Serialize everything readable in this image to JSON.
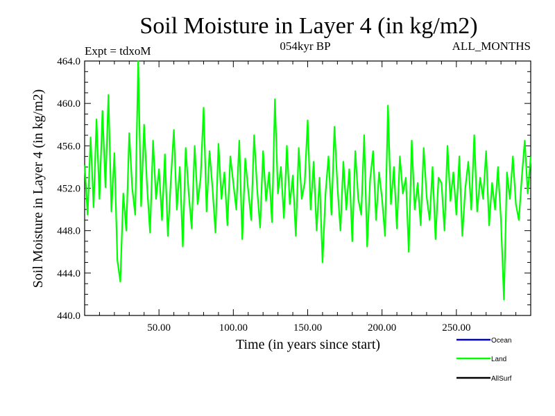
{
  "chart_data": {
    "type": "line",
    "title": "Soil Moisture in Layer 4 (in kg/m2)",
    "subtitle_left": "Expt = tdxoM",
    "subtitle_center": "054kyr BP",
    "subtitle_right": "ALL_MONTHS",
    "xlabel": "Time (in years since start)",
    "ylabel": "Soil Moisture in Layer 4 (in kg/m2)",
    "xlim": [
      0,
      300
    ],
    "ylim": [
      440,
      464
    ],
    "x_ticks": [
      50,
      100,
      150,
      200,
      250
    ],
    "x_tick_labels": [
      "50.00",
      "100.00",
      "150.00",
      "200.00",
      "250.00"
    ],
    "y_ticks": [
      440,
      444,
      448,
      452,
      456,
      460,
      464
    ],
    "y_tick_labels": [
      "440.0",
      "444.0",
      "448.0",
      "452.0",
      "456.0",
      "460.0",
      "464.0"
    ],
    "legend": [
      {
        "name": "Ocean",
        "color": "#0000cc"
      },
      {
        "name": "Land",
        "color": "#00ff00"
      },
      {
        "name": "AllSurf",
        "color": "#000000"
      }
    ],
    "legend_position": "bottom-right",
    "series": [
      {
        "name": "Land",
        "color": "#00ff00",
        "x": [
          0,
          2,
          4,
          6,
          8,
          10,
          12,
          14,
          16,
          18,
          20,
          22,
          24,
          26,
          28,
          30,
          32,
          34,
          36,
          38,
          40,
          42,
          44,
          46,
          48,
          50,
          52,
          54,
          56,
          58,
          60,
          62,
          64,
          66,
          68,
          70,
          72,
          74,
          76,
          78,
          80,
          82,
          84,
          86,
          88,
          90,
          92,
          94,
          96,
          98,
          100,
          102,
          104,
          106,
          108,
          110,
          112,
          114,
          116,
          118,
          120,
          122,
          124,
          126,
          128,
          130,
          132,
          134,
          136,
          138,
          140,
          142,
          144,
          146,
          148,
          150,
          152,
          154,
          156,
          158,
          160,
          162,
          164,
          166,
          168,
          170,
          172,
          174,
          176,
          178,
          180,
          182,
          184,
          186,
          188,
          190,
          192,
          194,
          196,
          198,
          200,
          202,
          204,
          206,
          208,
          210,
          212,
          214,
          216,
          218,
          220,
          222,
          224,
          226,
          228,
          230,
          232,
          234,
          236,
          238,
          240,
          242,
          244,
          246,
          248,
          250,
          252,
          254,
          256,
          258,
          260,
          262,
          264,
          266,
          268,
          270,
          272,
          274,
          276,
          278,
          280,
          282,
          284,
          286,
          288,
          290,
          292,
          294,
          296,
          298,
          300
        ],
        "values": [
          454.2,
          449.5,
          456.8,
          450.2,
          458.5,
          451.0,
          459.3,
          452.1,
          460.8,
          449.8,
          455.3,
          445.2,
          443.2,
          451.5,
          448.0,
          457.2,
          452.0,
          449.5,
          464.0,
          450.3,
          458.0,
          452.2,
          447.8,
          456.5,
          451.0,
          453.8,
          449.0,
          455.2,
          447.5,
          452.8,
          457.5,
          450.0,
          454.0,
          446.5,
          455.8,
          451.5,
          448.2,
          456.0,
          450.5,
          453.0,
          459.6,
          449.8,
          455.5,
          452.0,
          447.8,
          456.2,
          451.0,
          453.5,
          448.5,
          455.0,
          452.5,
          450.0,
          456.5,
          447.2,
          454.8,
          451.8,
          449.0,
          457.0,
          452.0,
          448.3,
          455.5,
          450.8,
          453.5,
          448.8,
          460.4,
          451.5,
          454.0,
          449.2,
          456.0,
          450.5,
          453.2,
          447.5,
          455.8,
          451.0,
          452.5,
          458.4,
          450.0,
          454.5,
          448.0,
          453.0,
          445.0,
          451.5,
          455.0,
          449.5,
          457.8,
          452.2,
          448.0,
          454.5,
          450.0,
          453.8,
          447.0,
          455.5,
          451.0,
          449.5,
          457.0,
          446.5,
          452.8,
          455.5,
          449.0,
          453.5,
          451.0,
          447.5,
          459.8,
          450.5,
          454.0,
          448.2,
          455.0,
          451.5,
          453.0,
          446.0,
          456.5,
          450.0,
          452.5,
          448.5,
          455.8,
          451.2,
          449.0,
          454.0,
          447.2,
          453.0,
          452.5,
          448.0,
          456.0,
          450.8,
          453.5,
          449.5,
          455.0,
          447.5,
          452.0,
          454.5,
          450.0,
          457.0,
          449.8,
          453.0,
          451.0,
          455.5,
          448.5,
          452.5,
          450.0,
          454.0,
          449.0,
          441.5,
          453.5,
          451.0,
          455.0,
          450.5,
          449.0,
          453.0,
          456.5,
          451.5,
          455.0
        ]
      }
    ]
  }
}
